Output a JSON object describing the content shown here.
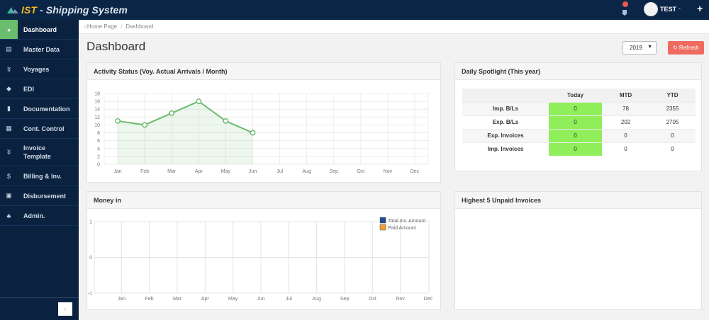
{
  "app": {
    "title_prefix": "IST",
    "title_suffix": " - Shipping System",
    "user_name": "TEST",
    "user_caret": "-",
    "add_icon": "+",
    "notification_icon": "bell-icon"
  },
  "sidebar": {
    "items": [
      {
        "label": "Dashboard",
        "icon": "dashboard-icon",
        "glyph": "◕",
        "active": true
      },
      {
        "label": "Master Data",
        "icon": "table-icon",
        "glyph": "▤"
      },
      {
        "label": "Voyages",
        "icon": "vk-icon",
        "glyph": "ʬ"
      },
      {
        "label": "EDI",
        "icon": "android-icon",
        "glyph": "◆"
      },
      {
        "label": "Documentation",
        "icon": "file-icon",
        "glyph": "▮"
      },
      {
        "label": "Cont. Control",
        "icon": "calendar-icon",
        "glyph": "▦"
      },
      {
        "label": "Invoice Template",
        "icon": "vk-icon",
        "glyph": "ʬ"
      },
      {
        "label": "Billing & Inv.",
        "icon": "dollar-icon",
        "glyph": "$"
      },
      {
        "label": "Disbursement",
        "icon": "money-icon",
        "glyph": "▣"
      },
      {
        "label": "Admin.",
        "icon": "sitemap-icon",
        "glyph": "♣"
      }
    ],
    "collapse_glyph": "‹"
  },
  "breadcrumb": {
    "home": "Home Page",
    "separator": "/",
    "current": "Dashboard"
  },
  "page": {
    "title": "Dashboard",
    "year_select": "2019",
    "refresh_label": "Refresh"
  },
  "panels": {
    "activity": {
      "title": "Activity Status (Voy. Actual Arrivals / Month)"
    },
    "spotlight": {
      "title": "Daily Spotlight (This year)",
      "columns": [
        "",
        "Today",
        "MTD",
        "YTD"
      ],
      "rows": [
        {
          "label": "Imp. B/Ls",
          "today": "0",
          "mtd": "78",
          "ytd": "2355"
        },
        {
          "label": "Exp. B/Ls",
          "today": "0",
          "mtd": "202",
          "ytd": "2705"
        },
        {
          "label": "Exp. Invoices",
          "today": "0",
          "mtd": "0",
          "ytd": "0"
        },
        {
          "label": "Imp. Invoices",
          "today": "0",
          "mtd": "0",
          "ytd": "0"
        }
      ]
    },
    "money": {
      "title": "Money in"
    },
    "unpaid": {
      "title": "Highest 5 Unpaid Invoices"
    }
  },
  "colors": {
    "topbar": "#0b2546",
    "sidebar": "#0a2240",
    "active_nav": "#6bbd6e",
    "brand_accent": "#f3b821",
    "refresh": "#ee6b5f",
    "today_cell": "#90ee5b",
    "line_series": "#6cba6f",
    "legend_total": "#1f4e8c",
    "legend_paid": "#f0a030"
  },
  "chart_data": [
    {
      "type": "area",
      "title": "Activity Status (Voy. Actual Arrivals / Month)",
      "categories": [
        "Jan",
        "Feb",
        "Mar",
        "Apr",
        "May",
        "Jun",
        "Jul",
        "Aug",
        "Sep",
        "Oct",
        "Nov",
        "Dec"
      ],
      "series": [
        {
          "name": "Voy. Actual Arrivals",
          "values": [
            11,
            10,
            13,
            16,
            11,
            8,
            null,
            null,
            null,
            null,
            null,
            null
          ]
        }
      ],
      "ylim": [
        0,
        18
      ],
      "yticks": [
        0,
        2,
        4,
        6,
        8,
        10,
        12,
        14,
        16,
        18
      ],
      "grid": true,
      "legend": false
    },
    {
      "type": "bar",
      "title": "Money in",
      "categories": [
        "Jan",
        "Feb",
        "Mar",
        "Apr",
        "May",
        "Jun",
        "Jul",
        "Aug",
        "Sep",
        "Oct",
        "Nov",
        "Dec"
      ],
      "series": [
        {
          "name": "Total Inv. Amount",
          "values": [
            0,
            0,
            0,
            0,
            0,
            0,
            0,
            0,
            0,
            0,
            0,
            0
          ]
        },
        {
          "name": "Paid Amount",
          "values": [
            0,
            0,
            0,
            0,
            0,
            0,
            0,
            0,
            0,
            0,
            0,
            0
          ]
        }
      ],
      "ylim": [
        -1,
        1
      ],
      "yticks": [
        -1,
        0,
        1
      ],
      "grid": true,
      "legend": "top-right"
    }
  ]
}
